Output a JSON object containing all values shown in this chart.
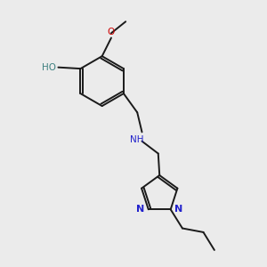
{
  "background_color": "#ebebeb",
  "bond_color": "#1a1a1a",
  "nitrogen_color": "#2222cc",
  "oxygen_color": "#cc0000",
  "oh_color": "#3d8080",
  "fig_size": [
    3.0,
    3.0
  ],
  "dpi": 100,
  "xlim": [
    0,
    10
  ],
  "ylim": [
    0,
    10
  ]
}
